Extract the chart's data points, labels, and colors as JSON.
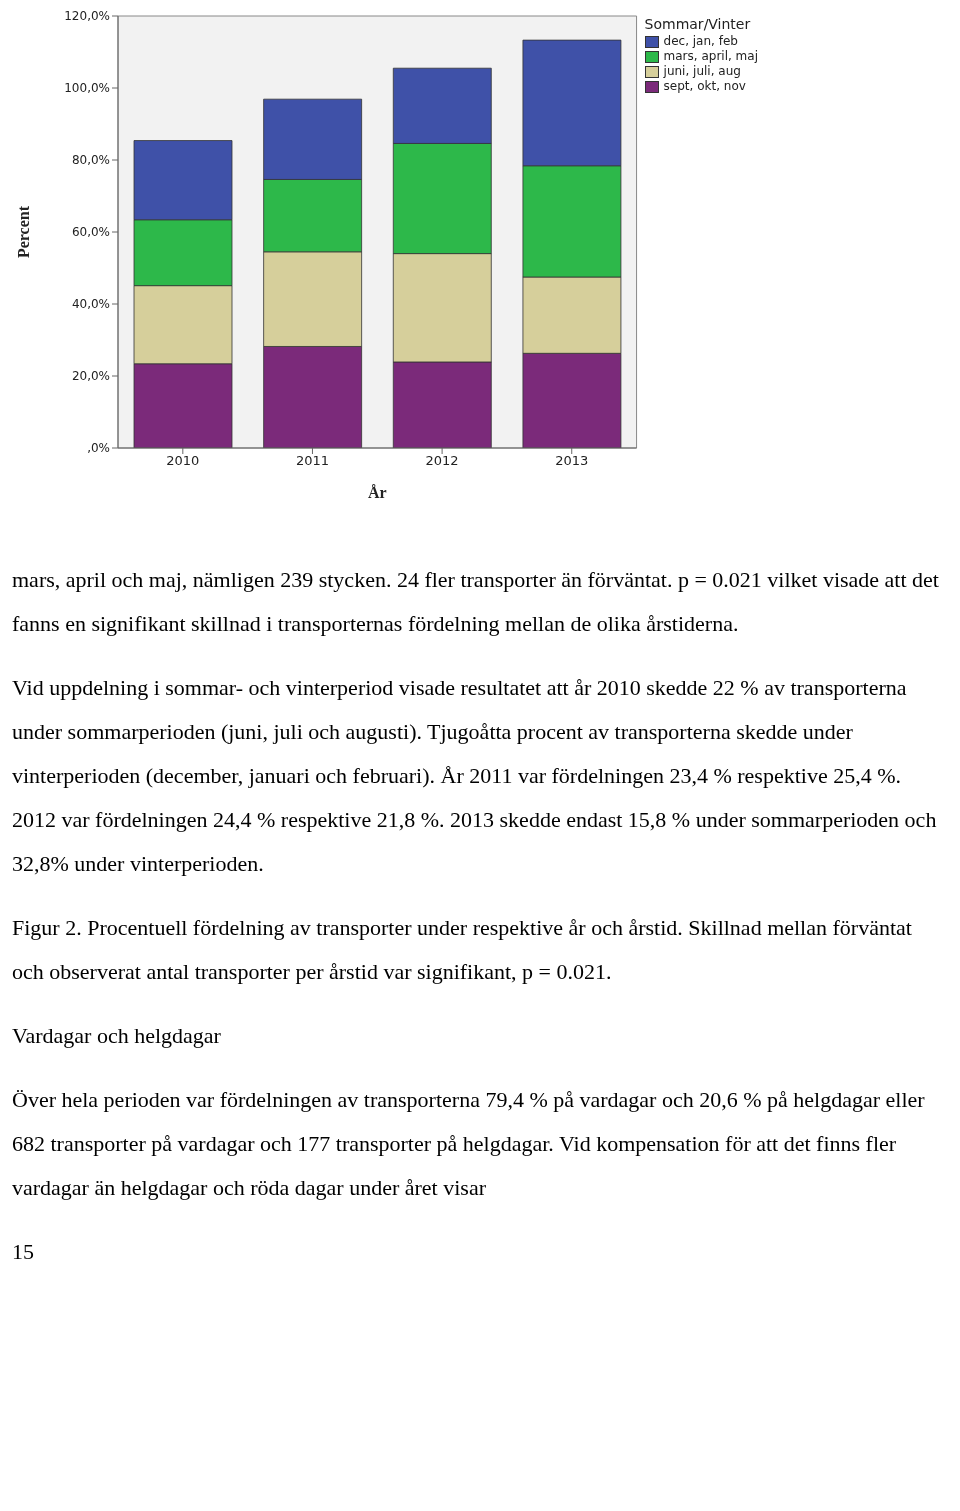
{
  "chart_data": {
    "type": "bar",
    "stacked": true,
    "xlabel": "År",
    "ylabel": "Percent",
    "legend_title": "Sommar/Vinter",
    "legend": "top right",
    "grid": false,
    "categories": [
      "2010",
      "2011",
      "2012",
      "2013"
    ],
    "series": [
      {
        "name": "sept, okt, nov",
        "color": "#7b2a7a",
        "values": [
          23.4,
          28.2,
          23.9,
          26.3
        ]
      },
      {
        "name": "juni, juli, aug",
        "color": "#d6cf9b",
        "values": [
          21.7,
          26.3,
          30.1,
          21.2
        ]
      },
      {
        "name": "mars, april, maj",
        "color": "#2db84a",
        "values": [
          18.3,
          20.1,
          30.6,
          30.9
        ]
      },
      {
        "name": "dec, jan, feb",
        "color": "#3f51a8",
        "values": [
          22.0,
          22.3,
          20.9,
          34.9
        ]
      }
    ],
    "ylim": [
      0,
      120
    ],
    "yticks": [
      {
        "value": 0,
        "label": ",0%"
      },
      {
        "value": 20,
        "label": "20,0%"
      },
      {
        "value": 40,
        "label": "40,0%"
      },
      {
        "value": 60,
        "label": "60,0%"
      },
      {
        "value": 80,
        "label": "80,0%"
      },
      {
        "value": 100,
        "label": "100,0%"
      },
      {
        "value": 120,
        "label": "120,0%"
      }
    ],
    "annotations": [
      "mars, april och maj, nämligen 239 stycken. 24 fler transporter än förväntat. p = 0.021 vilket visade att det fanns en signifikant skillnad i transporternas fördelning mellan de olika årstiderna.",
      "Vid uppdelning i sommar- och vinterperiod visade resultatet att år 2010 skedde 22 % av transporterna under sommarperioden (juni, juli och augusti). Tjugoåtta procent av transporterna skedde under vinterperioden (december, januari och februari). År 2011 var fördelningen 23,4 % respektive 25,4 %. 2012 var fördelningen 24,4 % respektive 21,8 %. 2013 skedde endast 15,8 % under sommarperioden och 32,8% under vinterperioden.",
      "Figur 2. Procentuell fördelning av transporter under respektive år och årstid. Skillnad mellan förväntat och observerat antal transporter per årstid var signifikant, p = 0.021.",
      "Vardagar och helgdagar",
      "Över hela perioden var fördelningen av transporterna 79,4 % på vardagar och 20,6 % på helgdagar eller 682 transporter på vardagar och 177 transporter på helgdagar. Vid kompensation för att det finns fler vardagar än helgdagar och röda dagar under året visar",
      "15"
    ]
  }
}
